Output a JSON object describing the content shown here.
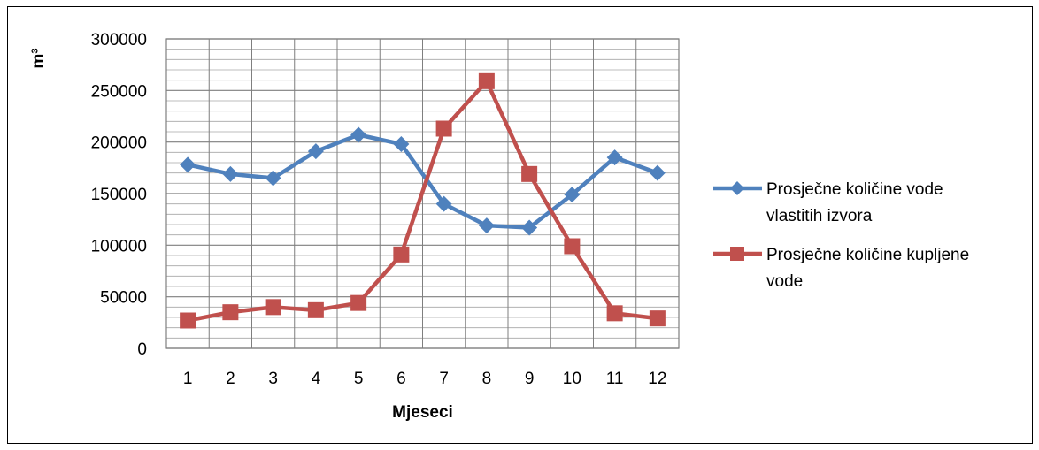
{
  "chart_data": {
    "type": "line",
    "xlabel": "Mjeseci",
    "ylabel": "m³",
    "ylim": [
      0,
      300000
    ],
    "y_major_ticks": [
      0,
      50000,
      100000,
      150000,
      200000,
      250000,
      300000
    ],
    "y_minor_step": 10000,
    "categories": [
      "1",
      "2",
      "3",
      "4",
      "5",
      "6",
      "7",
      "8",
      "9",
      "10",
      "11",
      "12"
    ],
    "grid": true,
    "legend_position": "right",
    "series": [
      {
        "name": "Prosječne količine vode vlastitih izvora",
        "legend_lines": [
          "Prosječne količine vode",
          "vlastitih izvora"
        ],
        "color": "#4F81BD",
        "marker": "diamond",
        "values": [
          178000,
          169000,
          165000,
          191000,
          207000,
          198000,
          140000,
          119000,
          117000,
          149000,
          185000,
          170000
        ]
      },
      {
        "name": "Prosječne količine kupljene vode",
        "legend_lines": [
          "Prosječne količine kupljene",
          "vode"
        ],
        "color": "#C0504D",
        "marker": "square",
        "values": [
          27000,
          35000,
          40000,
          37000,
          44000,
          91000,
          213000,
          259000,
          169000,
          99000,
          34000,
          29000
        ]
      }
    ]
  }
}
